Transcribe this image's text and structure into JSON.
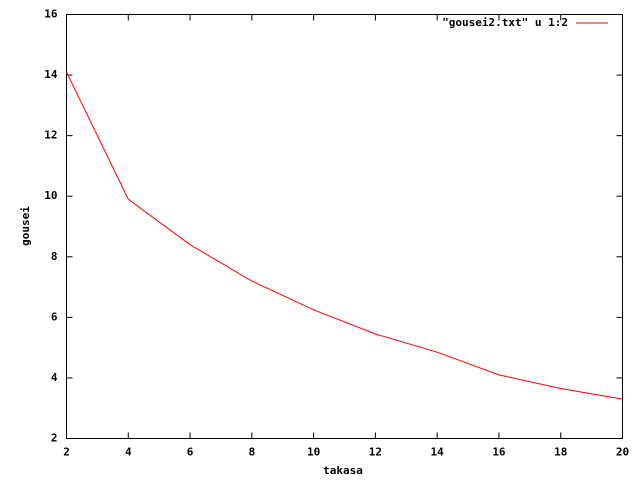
{
  "chart_data": {
    "type": "line",
    "x_label": "takasa",
    "y_label": "gousei",
    "x": [
      2,
      4,
      6,
      8,
      10,
      12,
      14,
      16,
      18,
      20
    ],
    "series": [
      {
        "name": "\"gousei2.txt\" u 1:2",
        "color": "#ff0000",
        "values": [
          14.1,
          9.9,
          8.4,
          7.2,
          6.25,
          5.45,
          4.85,
          4.1,
          3.65,
          3.3
        ]
      }
    ],
    "xlim": [
      2,
      20
    ],
    "xticks": [
      2,
      4,
      6,
      8,
      10,
      12,
      14,
      16,
      18,
      20
    ],
    "ylim": [
      2,
      16
    ],
    "yticks": [
      2,
      4,
      6,
      8,
      10,
      12,
      14,
      16
    ],
    "legend": "top-right",
    "grid": false
  }
}
